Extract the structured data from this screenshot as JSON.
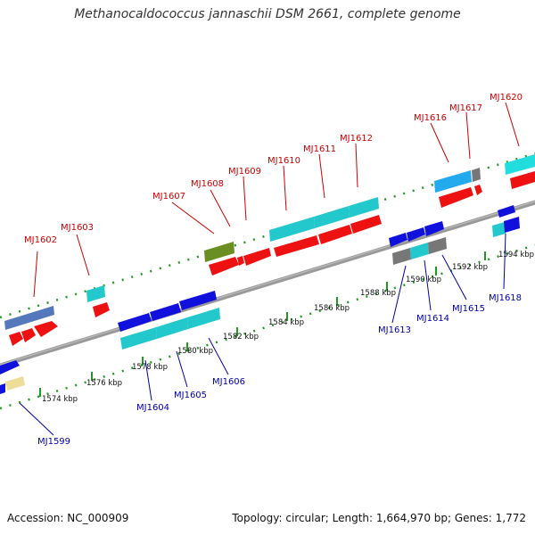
{
  "title": "Methanocaldococcus jannaschii DSM 2661, complete genome",
  "accession_text": "Accession: NC_000909",
  "topology_text": "Topology: circular; Length: 1,664,970 bp; Genes: 1,772",
  "colors": {
    "backbone": "#888888",
    "plus_strand_gene": "#ee1111",
    "minus_strand_gene": "#1111dd",
    "plus_label": "#cc0000",
    "minus_label": "#0000aa",
    "cds_cyan": "#22c8cc",
    "track_dots": "#229922"
  },
  "ruler_ticks": [
    "1574 kbp",
    "1576 kbp",
    "1578 kbp",
    "1580 kbp",
    "1582 kbp",
    "1584 kbp",
    "1586 kbp",
    "1588 kbp",
    "1590 kbp",
    "1592 kbp",
    "1594 kbp"
  ],
  "genes_plus": [
    "MJ1602",
    "MJ1603",
    "MJ1607",
    "MJ1608",
    "MJ1609",
    "MJ1610",
    "MJ1611",
    "MJ1612",
    "MJ1616",
    "MJ1617",
    "MJ1620"
  ],
  "genes_minus": [
    "MJ1599",
    "MJ1604",
    "MJ1605",
    "MJ1606",
    "MJ1613",
    "MJ1614",
    "MJ1615",
    "MJ1618"
  ]
}
